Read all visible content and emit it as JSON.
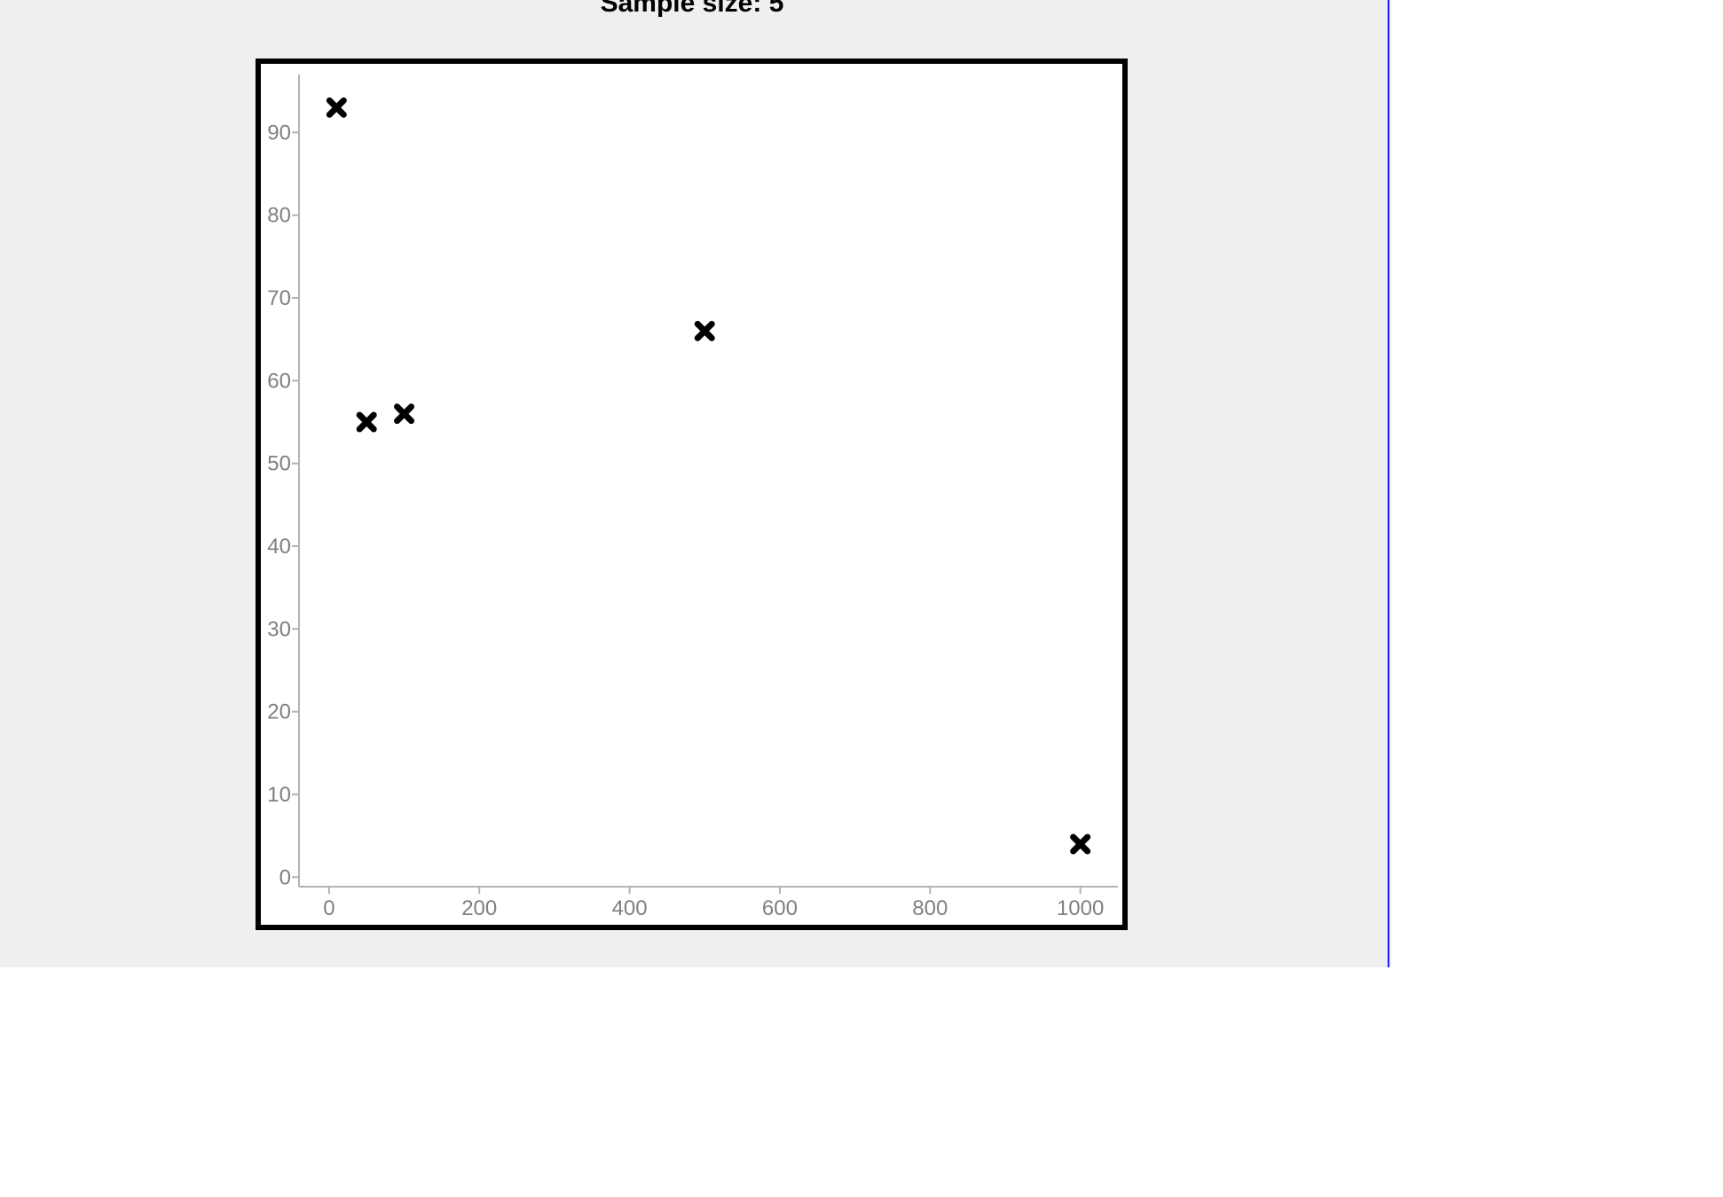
{
  "caption": "Sample size: 5",
  "colors": {
    "background": "#efefef",
    "plot_background": "#ffffff",
    "frame": "#000000",
    "axis": "#b3b3b3",
    "tick_text": "#808080",
    "marker": "#000000",
    "right_edge_line": "#1a1aff"
  },
  "chart_data": {
    "type": "scatter",
    "title": "",
    "xlabel": "",
    "ylabel": "",
    "xlim": [
      -40,
      1050
    ],
    "ylim": [
      -0.5,
      97
    ],
    "x_ticks": [
      0,
      200,
      400,
      600,
      800,
      1000
    ],
    "y_ticks": [
      0,
      10,
      20,
      30,
      40,
      50,
      60,
      70,
      80,
      90
    ],
    "grid": false,
    "legend": "none",
    "marker": "x",
    "series": [
      {
        "x": [
          10,
          50,
          100,
          500,
          1000
        ],
        "y": [
          93,
          55,
          56,
          66,
          4
        ]
      }
    ]
  }
}
